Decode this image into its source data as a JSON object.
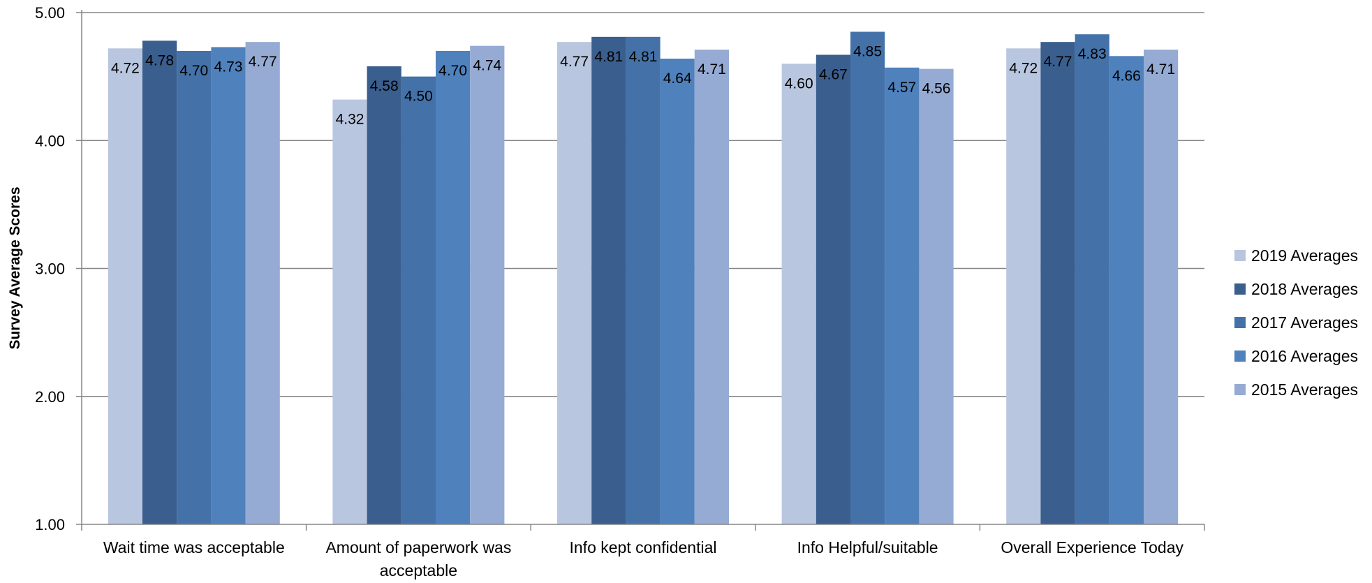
{
  "chart_data": {
    "type": "bar",
    "title": "",
    "xlabel": "",
    "ylabel": "Survey Average Scores",
    "ylim": [
      1.0,
      5.0
    ],
    "yticks": [
      "1.00",
      "2.00",
      "3.00",
      "4.00",
      "5.00"
    ],
    "grid": true,
    "legend_position": "right",
    "categories": [
      [
        "Wait time was acceptable"
      ],
      [
        "Amount of paperwork was",
        "acceptable"
      ],
      [
        "Info kept confidential"
      ],
      [
        "Info Helpful/suitable"
      ],
      [
        "Overall Experience Today"
      ]
    ],
    "series": [
      {
        "name": "2019 Averages",
        "color": "#b9c6df",
        "values": [
          4.72,
          4.32,
          4.77,
          4.6,
          4.72
        ],
        "labels": [
          "4.72",
          "4.32",
          "4.77",
          "4.60",
          "4.72"
        ]
      },
      {
        "name": "2018 Averages",
        "color": "#3a5e8d",
        "values": [
          4.78,
          4.58,
          4.81,
          4.67,
          4.77
        ],
        "labels": [
          "4.78",
          "4.58",
          "4.81",
          "4.67",
          "4.77"
        ]
      },
      {
        "name": "2017 Averages",
        "color": "#4472a8",
        "values": [
          4.7,
          4.5,
          4.81,
          4.85,
          4.83
        ],
        "labels": [
          "4.70",
          "4.50",
          "4.81",
          "4.85",
          "4.83"
        ]
      },
      {
        "name": "2016 Averages",
        "color": "#4f81bd",
        "values": [
          4.73,
          4.7,
          4.64,
          4.57,
          4.66
        ],
        "labels": [
          "4.73",
          "4.70",
          "4.64",
          "4.57",
          "4.66"
        ]
      },
      {
        "name": "2015 Averages",
        "color": "#95abd4",
        "values": [
          4.77,
          4.74,
          4.71,
          4.56,
          4.71
        ],
        "labels": [
          "4.77",
          "4.74",
          "4.71",
          "4.56",
          "4.71"
        ]
      }
    ]
  }
}
